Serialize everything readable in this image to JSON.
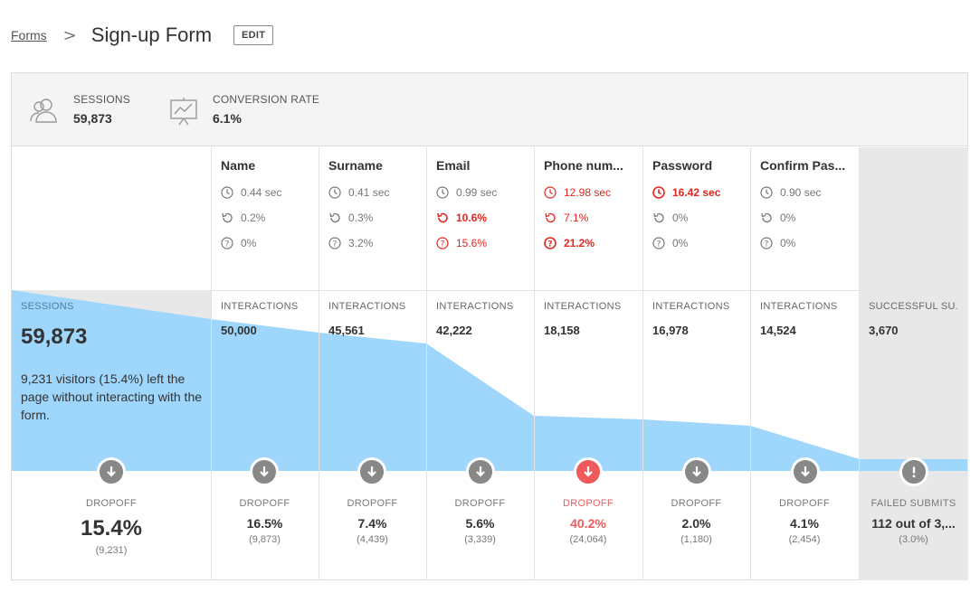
{
  "breadcrumb": {
    "parent": "Forms",
    "separator": ">",
    "title": "Sign-up Form",
    "edit_label": "EDIT"
  },
  "stats": {
    "sessions_label": "SESSIONS",
    "sessions_value": "59,873",
    "conversion_label": "CONVERSION RATE",
    "conversion_value": "6.1%"
  },
  "colors": {
    "funnel": "#9fd6fb",
    "bad": "#e5261f",
    "dropoff_red": "#f05a5a",
    "gray_column": "#e8e8e8"
  },
  "sessions_column": {
    "label": "SESSIONS",
    "value": "59,873",
    "description": "9,231 visitors (15.4%) left the page without interacting with the form.",
    "dropoff_label": "DROPOFF",
    "dropoff_pct": "15.4%",
    "dropoff_count": "(9,231)"
  },
  "fields": [
    {
      "name": "Name",
      "time": "0.44 sec",
      "refill": "0.2%",
      "hesitation": "0%",
      "interactions_label": "INTERACTIONS",
      "interactions": "50,000",
      "dropoff_label": "DROPOFF",
      "dropoff_pct": "16.5%",
      "dropoff_count": "(9,873)"
    },
    {
      "name": "Surname",
      "time": "0.41 sec",
      "refill": "0.3%",
      "hesitation": "3.2%",
      "interactions_label": "INTERACTIONS",
      "interactions": "45,561",
      "dropoff_label": "DROPOFF",
      "dropoff_pct": "7.4%",
      "dropoff_count": "(4,439)"
    },
    {
      "name": "Email",
      "time": "0.99 sec",
      "refill": "10.6%",
      "hesitation": "15.6%",
      "interactions_label": "INTERACTIONS",
      "interactions": "42,222",
      "dropoff_label": "DROPOFF",
      "dropoff_pct": "5.6%",
      "dropoff_count": "(3,339)"
    },
    {
      "name": "Phone num...",
      "time": "12.98 sec",
      "refill": "7.1%",
      "hesitation": "21.2%",
      "interactions_label": "INTERACTIONS",
      "interactions": "18,158",
      "dropoff_label": "DROPOFF",
      "dropoff_pct": "40.2%",
      "dropoff_count": "(24,064)"
    },
    {
      "name": "Password",
      "time": "16.42 sec",
      "refill": "0%",
      "hesitation": "0%",
      "interactions_label": "INTERACTIONS",
      "interactions": "16,978",
      "dropoff_label": "DROPOFF",
      "dropoff_pct": "2.0%",
      "dropoff_count": "(1,180)"
    },
    {
      "name": "Confirm Pas...",
      "time": "0.90 sec",
      "refill": "0%",
      "hesitation": "0%",
      "interactions_label": "INTERACTIONS",
      "interactions": "14,524",
      "dropoff_label": "DROPOFF",
      "dropoff_pct": "4.1%",
      "dropoff_count": "(2,454)"
    }
  ],
  "success_column": {
    "label": "SUCCESSFUL SU...",
    "value": "3,670",
    "failed_label": "FAILED SUBMITS",
    "failed_value": "112 out of 3,...",
    "failed_pct": "(3.0%)"
  }
}
